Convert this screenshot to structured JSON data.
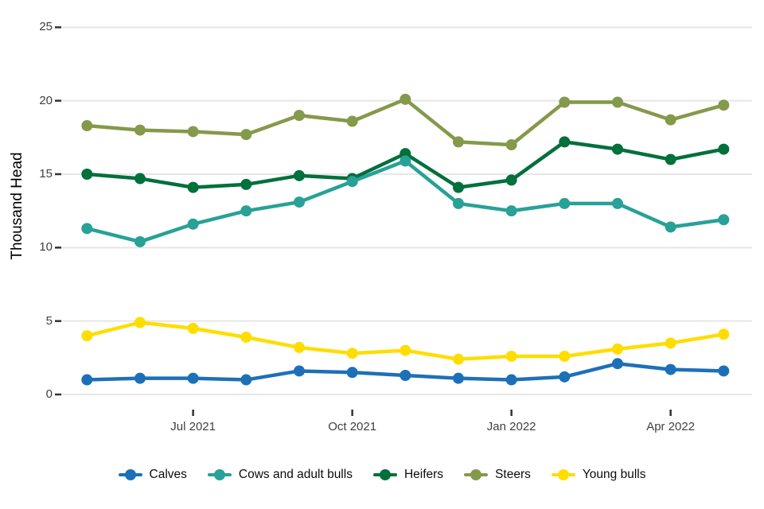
{
  "chart_data": {
    "type": "line",
    "title": "",
    "xlabel": "",
    "ylabel": "Thousand Head",
    "ylim": [
      0,
      25
    ],
    "y_ticks": [
      0,
      5,
      10,
      15,
      20,
      25
    ],
    "x": [
      "May 2021",
      "Jun 2021",
      "Jul 2021",
      "Aug 2021",
      "Sep 2021",
      "Oct 2021",
      "Nov 2021",
      "Dec 2021",
      "Jan 2022",
      "Feb 2022",
      "Mar 2022",
      "Apr 2022",
      "May 2022"
    ],
    "x_tick_labels": [
      "Jul 2021",
      "Oct 2021",
      "Jan 2022",
      "Apr 2022"
    ],
    "grid": "horizontal",
    "legend_position": "bottom",
    "series": [
      {
        "name": "Calves",
        "color": "#1d70b8",
        "values": [
          1.0,
          1.1,
          1.1,
          1.0,
          1.6,
          1.5,
          1.3,
          1.1,
          1.0,
          1.2,
          2.1,
          1.7,
          1.6
        ]
      },
      {
        "name": "Cows and adult bulls",
        "color": "#28a197",
        "values": [
          11.3,
          10.4,
          11.6,
          12.5,
          13.1,
          14.5,
          15.9,
          13.0,
          12.5,
          13.0,
          13.0,
          11.4,
          11.9
        ]
      },
      {
        "name": "Heifers",
        "color": "#00703c",
        "values": [
          15.0,
          14.7,
          14.1,
          14.3,
          14.9,
          14.7,
          16.4,
          14.1,
          14.6,
          17.2,
          16.7,
          16.0,
          16.7
        ]
      },
      {
        "name": "Steers",
        "color": "#85994b",
        "values": [
          18.3,
          18.0,
          17.9,
          17.7,
          19.0,
          18.6,
          20.1,
          17.2,
          17.0,
          19.9,
          19.9,
          18.7,
          19.7
        ]
      },
      {
        "name": "Young bulls",
        "color": "#ffdd00",
        "values": [
          4.0,
          4.9,
          4.5,
          3.9,
          3.2,
          2.8,
          3.0,
          2.4,
          2.6,
          2.6,
          3.1,
          3.5,
          4.1
        ]
      }
    ],
    "style": {
      "gridline_color": "#e6e6e6",
      "tick_color": "#333333",
      "axis_text_color": "#3f3f3f",
      "text_color": "#0b0c0c"
    }
  }
}
